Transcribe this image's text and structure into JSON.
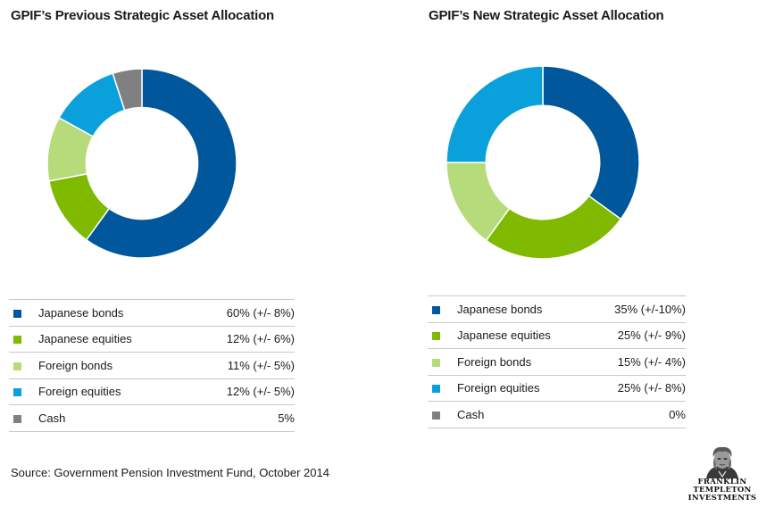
{
  "chart_data": [
    {
      "type": "pie",
      "title": "GPIF’s Previous Strategic Asset Allocation",
      "hole": "donut",
      "labels": [
        "Japanese bonds",
        "Japanese equities",
        "Foreign bonds",
        "Foreign equities",
        "Cash"
      ],
      "values": [
        60,
        12,
        11,
        12,
        5
      ],
      "value_labels": [
        "60% (+/- 8%)",
        "12% (+/- 6%)",
        "11% (+/- 5%)",
        "12% (+/- 5%)",
        "5%"
      ],
      "colors": [
        "#00579c",
        "#7fba00",
        "#b6db7a",
        "#0aa0dc",
        "#808080"
      ]
    },
    {
      "type": "pie",
      "title": "GPIF’s New Strategic Asset Allocation",
      "hole": "donut",
      "labels": [
        "Japanese bonds",
        "Japanese equities",
        "Foreign bonds",
        "Foreign equities",
        "Cash"
      ],
      "values": [
        35,
        25,
        15,
        25,
        0
      ],
      "value_labels": [
        "35% (+/-10%)",
        "25% (+/- 9%)",
        "15% (+/- 4%)",
        "25% (+/- 8%)",
        "0%"
      ],
      "colors": [
        "#00579c",
        "#7fba00",
        "#b6db7a",
        "#0aa0dc",
        "#808080"
      ]
    }
  ],
  "source": "Source: Government Pension Investment Fund, October 2014",
  "logo": {
    "line1": "FRANKLIN TEMPLETON",
    "line2": "INVESTMENTS",
    "icon": "benjamin-franklin-portrait"
  }
}
